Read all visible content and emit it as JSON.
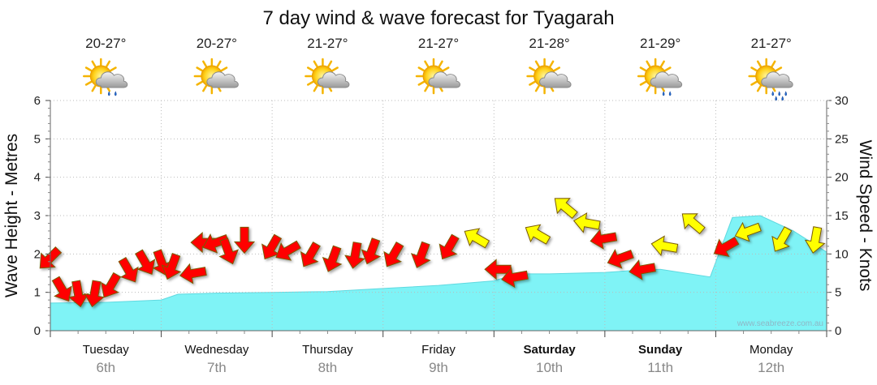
{
  "chart_data": {
    "type": "area",
    "title": "7 day wind & wave forecast for Tyagarah",
    "ylabel_left": "Wave Height - Metres",
    "ylabel_right": "Wind Speed - Knots",
    "ylim_left": [
      0,
      6
    ],
    "ylim_right": [
      0,
      30
    ],
    "yticks_left": [
      "0",
      "1",
      "2",
      "3",
      "4",
      "5",
      "6"
    ],
    "yticks_right": [
      "0",
      "5",
      "10",
      "15",
      "20",
      "25",
      "30"
    ],
    "watermark": "www.seabreeze.com.au",
    "days": [
      {
        "name": "Tuesday",
        "date": "6th",
        "temp": "20-27°",
        "weather": "sun-cloud-showers",
        "bold": false
      },
      {
        "name": "Wednesday",
        "date": "7th",
        "temp": "20-27°",
        "weather": "sun-cloud",
        "bold": false
      },
      {
        "name": "Thursday",
        "date": "8th",
        "temp": "21-27°",
        "weather": "sun-cloud",
        "bold": false
      },
      {
        "name": "Friday",
        "date": "9th",
        "temp": "21-27°",
        "weather": "sun-cloud",
        "bold": false
      },
      {
        "name": "Saturday",
        "date": "10th",
        "temp": "21-28°",
        "weather": "sun-cloud",
        "bold": true
      },
      {
        "name": "Sunday",
        "date": "11th",
        "temp": "21-29°",
        "weather": "sun-cloud-showers",
        "bold": true
      },
      {
        "name": "Monday",
        "date": "12th",
        "temp": "21-27°",
        "weather": "sun-cloud-rain",
        "bold": false
      }
    ],
    "wave_height_series": {
      "x_days": [
        0,
        0.5,
        1.0,
        1.15,
        1.5,
        2.0,
        2.5,
        3.0,
        3.5,
        4.0,
        4.2,
        4.5,
        5.0,
        5.3,
        5.5,
        5.95,
        6.15,
        6.4,
        6.7,
        7.0
      ],
      "values": [
        0.72,
        0.74,
        0.8,
        0.95,
        0.98,
        1.0,
        1.02,
        1.1,
        1.18,
        1.3,
        1.48,
        1.48,
        1.52,
        1.58,
        1.6,
        1.4,
        2.95,
        3.0,
        2.6,
        2.05
      ]
    },
    "wind_series": {
      "color_scale": {
        "red": "#ff0000",
        "yellow": "#ffff00"
      },
      "points": [
        {
          "day": 0.0,
          "knots": 9.5,
          "dir": 135,
          "color": "#ff0000"
        },
        {
          "day": 0.1,
          "knots": 5.5,
          "dir": 60,
          "color": "#ff0000"
        },
        {
          "day": 0.25,
          "knots": 5,
          "dir": 80,
          "color": "#ff0000"
        },
        {
          "day": 0.4,
          "knots": 5,
          "dir": 100,
          "color": "#ff0000"
        },
        {
          "day": 0.55,
          "knots": 6,
          "dir": 120,
          "color": "#ff0000"
        },
        {
          "day": 0.7,
          "knots": 8,
          "dir": 60,
          "color": "#ff0000"
        },
        {
          "day": 0.85,
          "knots": 9,
          "dir": 60,
          "color": "#ff0000"
        },
        {
          "day": 1.0,
          "knots": 9,
          "dir": 70,
          "color": "#ff0000"
        },
        {
          "day": 1.1,
          "knots": 8.5,
          "dir": 110,
          "color": "#ff0000"
        },
        {
          "day": 1.3,
          "knots": 7.5,
          "dir": 170,
          "color": "#ff0000"
        },
        {
          "day": 1.4,
          "knots": 11.5,
          "dir": 180,
          "color": "#ff0000"
        },
        {
          "day": 1.5,
          "knots": 11.5,
          "dir": 160,
          "color": "#ff0000"
        },
        {
          "day": 1.6,
          "knots": 10.5,
          "dir": 70,
          "color": "#ff0000"
        },
        {
          "day": 1.75,
          "knots": 12,
          "dir": 90,
          "color": "#ff0000"
        },
        {
          "day": 2.0,
          "knots": 11,
          "dir": 120,
          "color": "#ff0000"
        },
        {
          "day": 2.15,
          "knots": 10.5,
          "dir": 150,
          "color": "#ff0000"
        },
        {
          "day": 2.35,
          "knots": 10,
          "dir": 120,
          "color": "#ff0000"
        },
        {
          "day": 2.55,
          "knots": 9.5,
          "dir": 110,
          "color": "#ff0000"
        },
        {
          "day": 2.75,
          "knots": 10,
          "dir": 100,
          "color": "#ff0000"
        },
        {
          "day": 2.9,
          "knots": 10.5,
          "dir": 110,
          "color": "#ff0000"
        },
        {
          "day": 3.1,
          "knots": 10,
          "dir": 120,
          "color": "#ff0000"
        },
        {
          "day": 3.35,
          "knots": 10,
          "dir": 110,
          "color": "#ff0000"
        },
        {
          "day": 3.6,
          "knots": 11,
          "dir": 120,
          "color": "#ff0000"
        },
        {
          "day": 3.85,
          "knots": 12,
          "dir": 210,
          "color": "#ffff00"
        },
        {
          "day": 4.05,
          "knots": 8,
          "dir": 180,
          "color": "#ff0000"
        },
        {
          "day": 4.2,
          "knots": 7,
          "dir": 170,
          "color": "#ff0000"
        },
        {
          "day": 4.4,
          "knots": 12.5,
          "dir": 210,
          "color": "#ffff00"
        },
        {
          "day": 4.65,
          "knots": 16,
          "dir": 220,
          "color": "#ffff00"
        },
        {
          "day": 4.85,
          "knots": 14,
          "dir": 190,
          "color": "#ffff00"
        },
        {
          "day": 5.0,
          "knots": 12,
          "dir": 170,
          "color": "#ff0000"
        },
        {
          "day": 5.15,
          "knots": 9.5,
          "dir": 160,
          "color": "#ff0000"
        },
        {
          "day": 5.35,
          "knots": 8,
          "dir": 170,
          "color": "#ff0000"
        },
        {
          "day": 5.55,
          "knots": 11,
          "dir": 190,
          "color": "#ffff00"
        },
        {
          "day": 5.8,
          "knots": 14,
          "dir": 220,
          "color": "#ffff00"
        },
        {
          "day": 6.1,
          "knots": 11,
          "dir": 150,
          "color": "#ff0000"
        },
        {
          "day": 6.3,
          "knots": 13,
          "dir": 160,
          "color": "#ffff00"
        },
        {
          "day": 6.6,
          "knots": 12,
          "dir": 120,
          "color": "#ffff00"
        },
        {
          "day": 6.9,
          "knots": 12,
          "dir": 100,
          "color": "#ffff00"
        }
      ]
    }
  }
}
